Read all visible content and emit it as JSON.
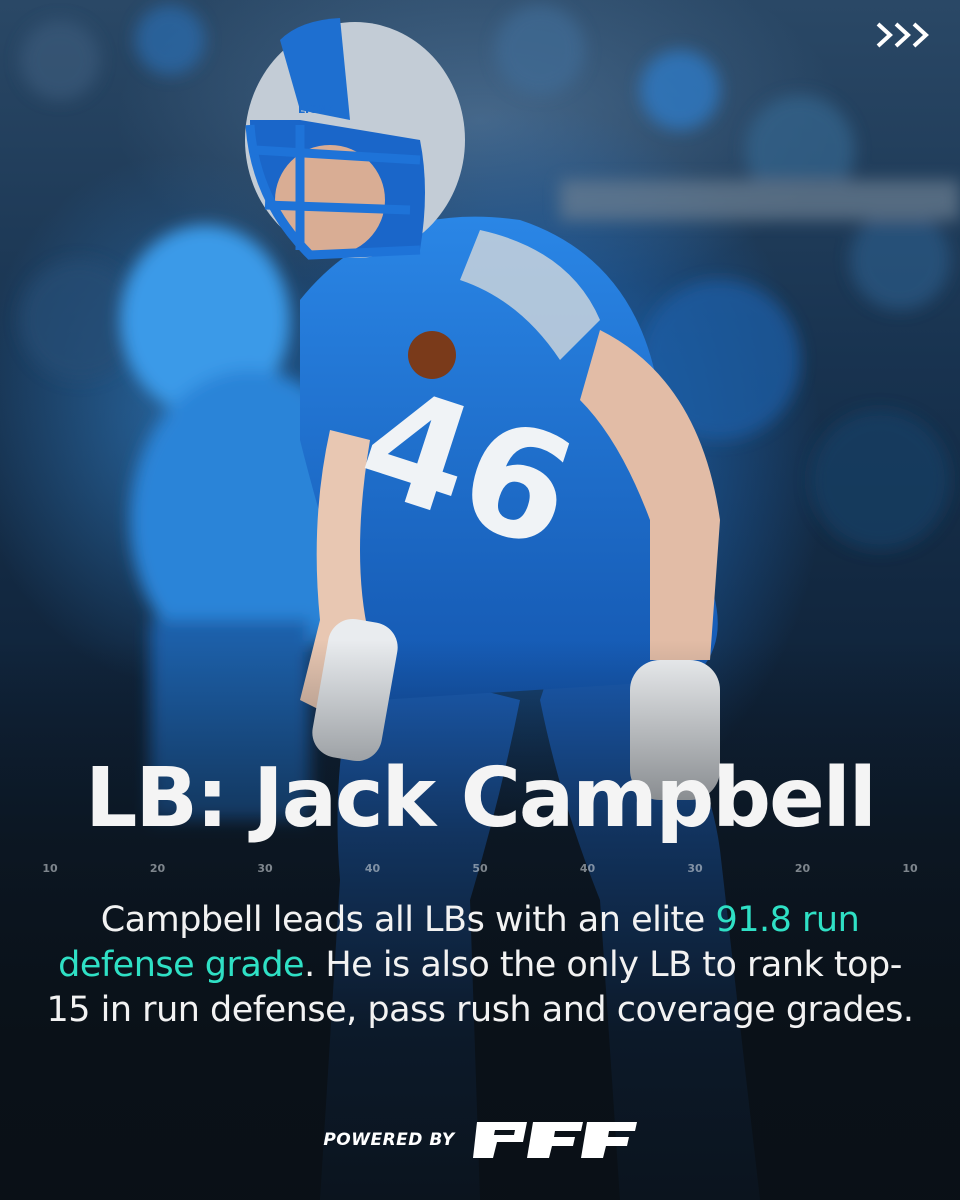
{
  "headline": "LB: Jack Campbell",
  "yard_markers": [
    "10",
    "20",
    "30",
    "40",
    "50",
    "40",
    "30",
    "20",
    "10"
  ],
  "body": {
    "part1": "Campbell leads all LBs with an elite ",
    "highlight": "91.8 run defense grade",
    "part2": ". He is also the only LB to rank top-15 in run defense, pass rush and coverage grades."
  },
  "footer": {
    "powered_by": "POWERED BY"
  },
  "photo": {
    "jersey_number": "46",
    "helmet_label": "LIONS"
  },
  "colors": {
    "accent": "#2fe0c5",
    "jersey_blue": "#1a6fd0",
    "text": "#f2f2f2"
  }
}
